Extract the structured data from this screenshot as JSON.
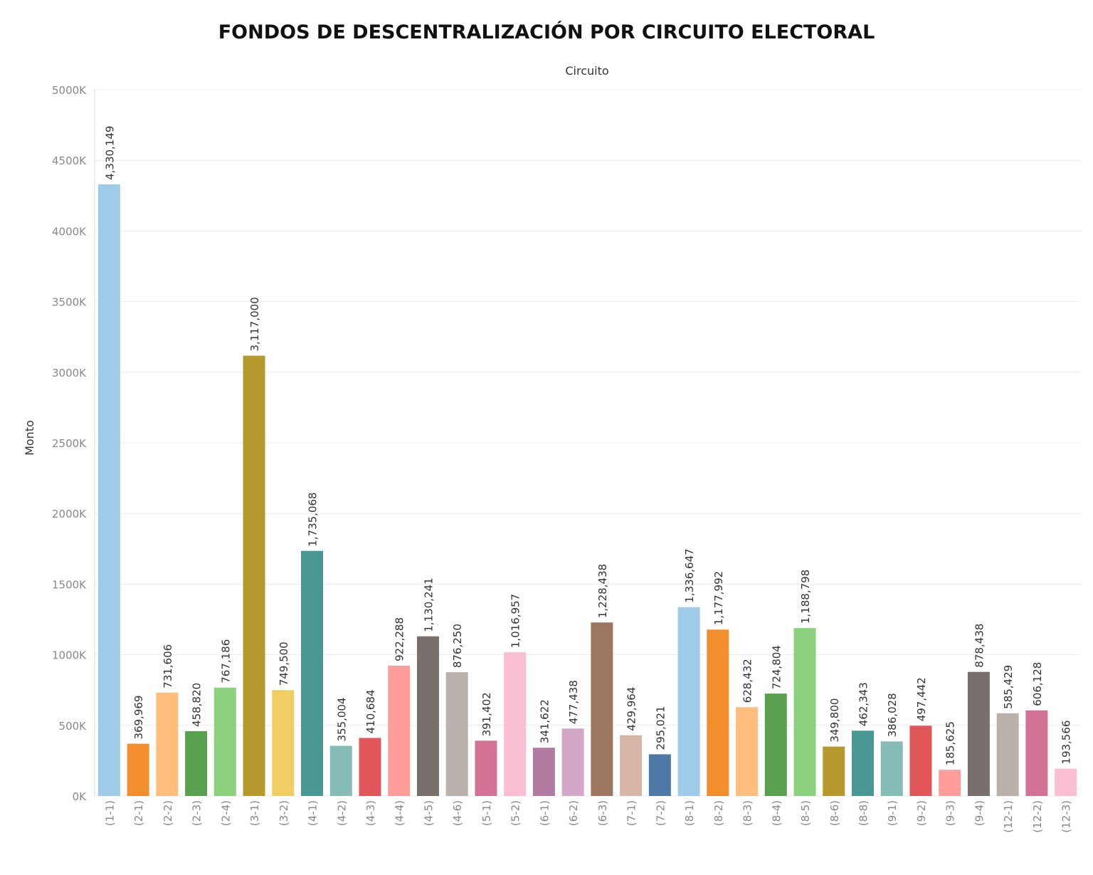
{
  "title": "FONDOS DE DESCENTRALIZACIÓN POR CIRCUITO ELECTORAL",
  "chart_data": {
    "type": "bar",
    "title": "FONDOS DE DESCENTRALIZACIÓN POR CIRCUITO ELECTORAL",
    "column_header": "Circuito",
    "xlabel": "",
    "ylabel": "Monto",
    "ylim": [
      0,
      5000000
    ],
    "y_ticks": [
      0,
      500000,
      1000000,
      1500000,
      2000000,
      2500000,
      3000000,
      3500000,
      4000000,
      4500000,
      5000000
    ],
    "y_tick_labels": [
      "0K",
      "500K",
      "1000K",
      "1500K",
      "2000K",
      "2500K",
      "3000K",
      "3500K",
      "4000K",
      "4500K",
      "5000K"
    ],
    "grid": true,
    "categories": [
      "(1-1)",
      "(2-1)",
      "(2-2)",
      "(2-3)",
      "(2-4)",
      "(3-1)",
      "(3-2)",
      "(4-1)",
      "(4-2)",
      "(4-3)",
      "(4-4)",
      "(4-5)",
      "(4-6)",
      "(5-1)",
      "(5-2)",
      "(6-1)",
      "(6-2)",
      "(6-3)",
      "(7-1)",
      "(7-2)",
      "(8-1)",
      "(8-2)",
      "(8-3)",
      "(8-4)",
      "(8-5)",
      "(8-6)",
      "(8-8)",
      "(9-1)",
      "(9-2)",
      "(9-3)",
      "(9-4)",
      "(12-1)",
      "(12-2)",
      "(12-3)"
    ],
    "values": [
      4330149,
      369969,
      731606,
      458820,
      767186,
      3117000,
      749500,
      1735068,
      355004,
      410684,
      922288,
      1130241,
      876250,
      391402,
      1016957,
      341622,
      477438,
      1228438,
      429964,
      295021,
      1336647,
      1177992,
      628432,
      724804,
      1188798,
      349800,
      462343,
      386028,
      497442,
      185625,
      878438,
      585429,
      606128,
      193566
    ],
    "value_labels": [
      "4,330,149",
      "369,969",
      "731,606",
      "458,820",
      "767,186",
      "3,117,000",
      "749,500",
      "1,735,068",
      "355,004",
      "410,684",
      "922,288",
      "1,130,241",
      "876,250",
      "391,402",
      "1,016,957",
      "341,622",
      "477,438",
      "1,228,438",
      "429,964",
      "295,021",
      "1,336,647",
      "1,177,992",
      "628,432",
      "724,804",
      "1,188,798",
      "349,800",
      "462,343",
      "386,028",
      "497,442",
      "185,625",
      "878,438",
      "585,429",
      "606,128",
      "193,566"
    ],
    "colors": [
      "#a0cbe8",
      "#f28e2b",
      "#ffbe7d",
      "#59a14f",
      "#8cd17d",
      "#b6992d",
      "#f1ce63",
      "#499894",
      "#86bcb6",
      "#e15759",
      "#ff9d9a",
      "#79706e",
      "#bab0ac",
      "#d37295",
      "#fabfd2",
      "#b07aa1",
      "#d4a6c8",
      "#9d7660",
      "#d7b5a6",
      "#4e79a7",
      "#a0cbe8",
      "#f28e2b",
      "#ffbe7d",
      "#59a14f",
      "#8cd17d",
      "#b6992d",
      "#499894",
      "#86bcb6",
      "#e15759",
      "#ff9d9a",
      "#79706e",
      "#bab0ac",
      "#d37295",
      "#fabfd2"
    ]
  }
}
